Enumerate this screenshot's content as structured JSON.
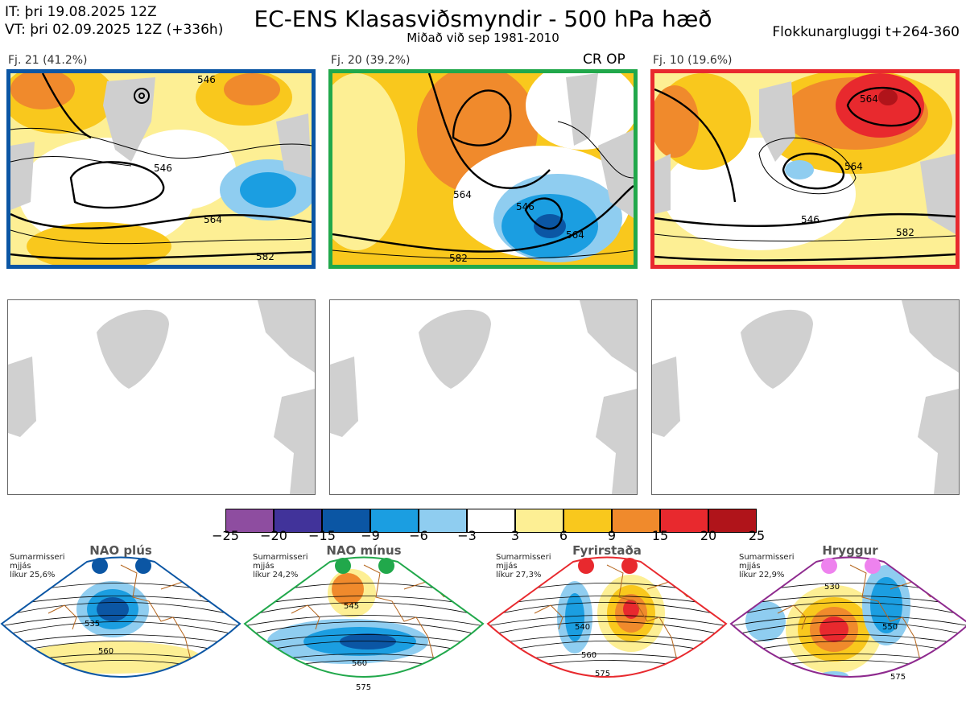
{
  "header": {
    "it_line": "IT: þri 19.08.2025 12Z",
    "vt_line": "VT: þri 02.09.2025 12Z  (+336h)",
    "title": "EC-ENS Klasasviðsmyndir - 500 hPa hæð",
    "subtitle": "Miðað við sep 1981-2010",
    "window": "Flokkunargluggi t+264-360"
  },
  "clusters": [
    {
      "label": "Fj. 21 (41.2%)",
      "border_color": "#0b56a4",
      "contours": [
        "546",
        "564",
        "582",
        "546"
      ]
    },
    {
      "label": "Fj. 20 (39.2%)",
      "border_color": "#21a84b",
      "crop": "CR OP",
      "contours": [
        "546",
        "564",
        "582",
        "564"
      ]
    },
    {
      "label": "Fj. 10 (19.6%)",
      "border_color": "#e8292e",
      "contours": [
        "546",
        "564",
        "582",
        "564"
      ]
    }
  ],
  "colorbar": {
    "colors": [
      "#8e4da0",
      "#41339a",
      "#0b56a4",
      "#1b9ee1",
      "#8fcdf0",
      "#ffffff",
      "#fdef94",
      "#f9c81d",
      "#f08a2c",
      "#e8292e",
      "#b0141a"
    ],
    "ticks": [
      "−25",
      "−20",
      "−15",
      "−9",
      "−6",
      "−3",
      "3",
      "6",
      "9",
      "15",
      "20",
      "25"
    ]
  },
  "regimes": [
    {
      "name": "NAO plús",
      "info": [
        "Sumarmisseri",
        "mjjás",
        "líkur 25,6%"
      ],
      "border_color": "#0b56a4",
      "dot_color": "#0b56a4",
      "contours": [
        "535",
        "560"
      ]
    },
    {
      "name": "NAO mínus",
      "info": [
        "Sumarmisseri",
        "mjjás",
        "líkur 24,2%"
      ],
      "border_color": "#21a84b",
      "dot_color": "#21a84b",
      "contours": [
        "545",
        "560",
        "575"
      ]
    },
    {
      "name": "Fyrirstaða",
      "info": [
        "Sumarmisseri",
        "mjjás",
        "líkur 27,3%"
      ],
      "border_color": "#e8292e",
      "dot_color": "#e8292e",
      "contours": [
        "540",
        "560",
        "575"
      ]
    },
    {
      "name": "Hryggur",
      "info": [
        "Sumarmisseri",
        "mjjás",
        "líkur 22,9%"
      ],
      "border_color": "#8e2a8e",
      "dot_color": "#ee82ee",
      "contours": [
        "530",
        "550",
        "575"
      ]
    }
  ]
}
